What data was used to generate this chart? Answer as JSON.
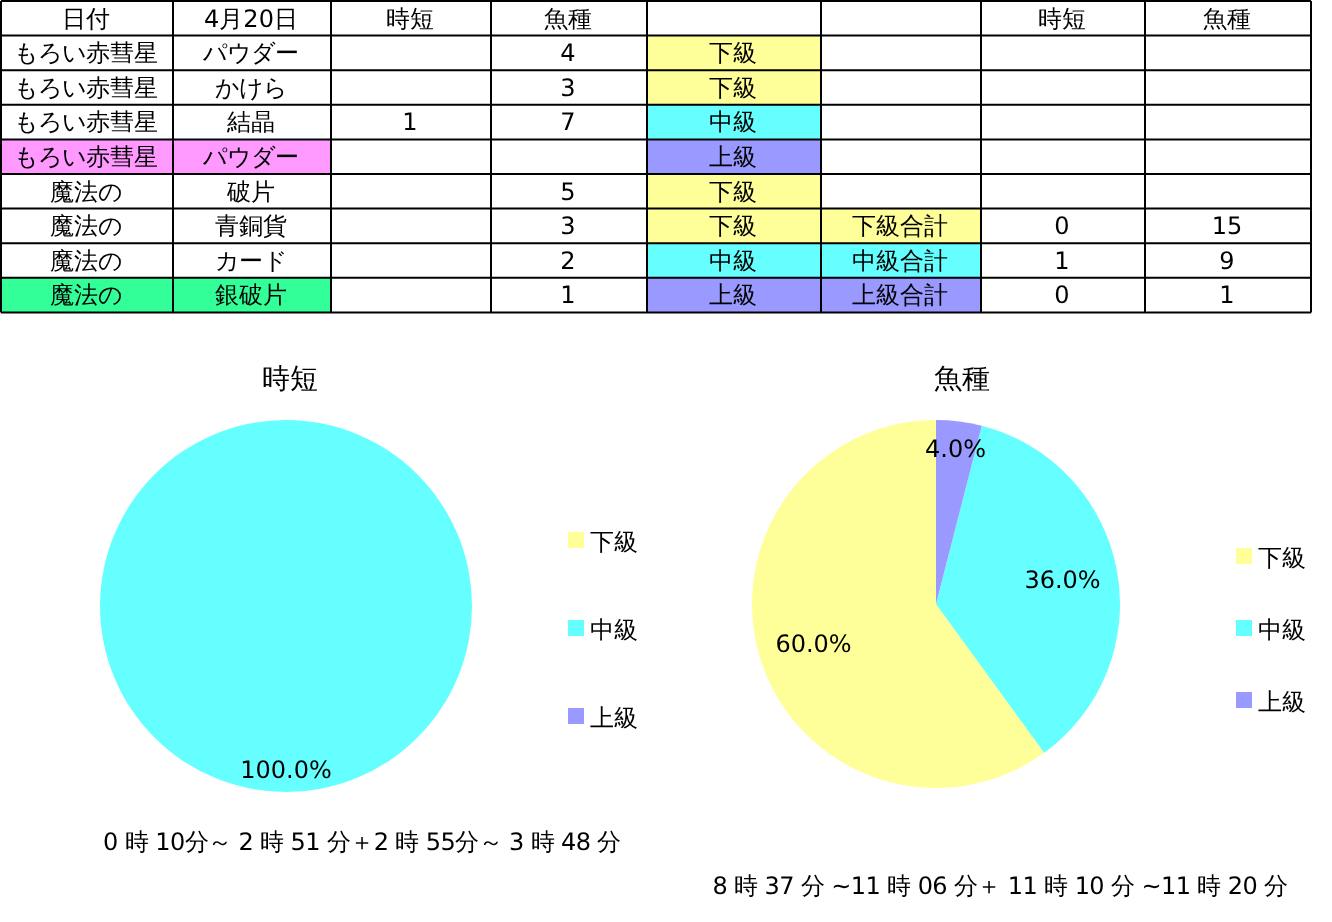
{
  "chart_data": [
    {
      "type": "other",
      "annotations": [
        "日付",
        "4月20日",
        "時短",
        "魚種",
        null,
        null,
        "時短",
        "魚種",
        "もろい赤彗星",
        "パウダー",
        null,
        "4",
        "下級",
        null,
        null,
        null,
        "もろい赤彗星",
        "かけら",
        null,
        "3",
        "下級",
        null,
        null,
        null,
        "もろい赤彗星",
        "結晶",
        "1",
        "7",
        "中級",
        null,
        null,
        null,
        "もろい赤彗星",
        "パウダー",
        null,
        null,
        "上級",
        null,
        null,
        null,
        "魔法の",
        "破片",
        null,
        "5",
        "下級",
        null,
        null,
        null,
        "魔法の",
        "青銅貨",
        null,
        "3",
        "下級",
        "下級合計",
        "0",
        "15",
        "魔法の",
        "カード",
        null,
        "2",
        "中級",
        "中級合計",
        "1",
        "9",
        "魔法の",
        "銀破片",
        null,
        "1",
        "上級",
        "上級合計",
        "0",
        "1"
      ],
      "colors": [
        null,
        null,
        null,
        null,
        null,
        null,
        null,
        null,
        null,
        null,
        null,
        null,
        "#ffff99",
        null,
        null,
        null,
        null,
        null,
        null,
        null,
        "#ffff99",
        null,
        null,
        null,
        null,
        null,
        null,
        null,
        "#66ffff",
        null,
        null,
        null,
        "#ff99ff",
        "#ff99ff",
        null,
        null,
        "#9999ff",
        null,
        null,
        null,
        null,
        null,
        null,
        null,
        "#ffff99",
        null,
        null,
        null,
        null,
        null,
        null,
        null,
        "#ffff99",
        "#ffff99",
        null,
        null,
        null,
        null,
        null,
        null,
        "#66ffff",
        "#66ffff",
        null,
        null,
        "#33ff99",
        "#33ff99",
        null,
        null,
        "#9999ff",
        "#9999ff",
        null,
        null
      ]
    },
    {
      "type": "pie",
      "title": "時短",
      "categories": [
        "下級",
        "中級",
        "上級"
      ],
      "values": [
        0,
        100,
        0
      ],
      "colors": [
        "#ffff99",
        "#66ffff",
        "#9999ff"
      ],
      "value_labels": [
        null,
        "100.0%",
        null
      ],
      "legend": "right",
      "annotations": [
        "0 時 10分～ 2 時 51 分＋2 時 55分～ 3 時 48 分"
      ]
    },
    {
      "type": "pie",
      "title": "魚種",
      "categories": [
        "下級",
        "中級",
        "上級"
      ],
      "values": [
        60,
        36,
        4
      ],
      "colors": [
        "#ffff99",
        "#66ffff",
        "#9999ff"
      ],
      "value_labels": [
        "60.0%",
        "36.0%",
        "4.0%"
      ],
      "legend": "right",
      "annotations": [
        "8 時 37 分 ~11 時 06 分＋ 11 時 10 分 ~11 時 20 分"
      ]
    }
  ]
}
